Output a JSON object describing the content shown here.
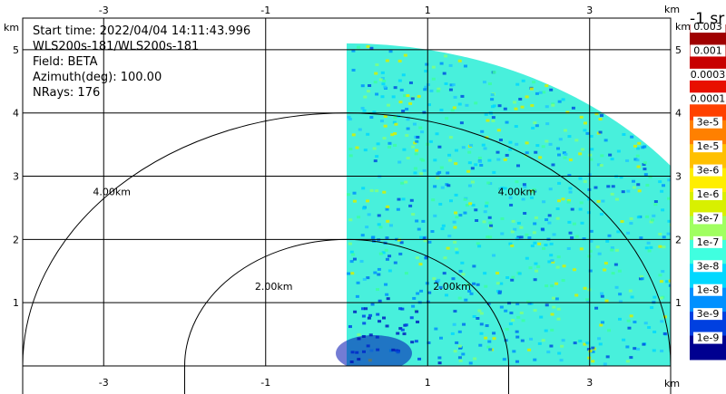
{
  "info": {
    "lines": [
      "Start time: 2022/04/04 14:11:43.996",
      "WLS200s-181/WLS200s-181",
      "Field: BETA",
      "Azimuth(deg): 100.00",
      "NRays: 176"
    ]
  },
  "colorbar": {
    "title": "-1 sr",
    "labels": [
      "0.003",
      "0.001",
      "0.0003",
      "0.0001",
      "3e-5",
      "1e-5",
      "3e-6",
      "1e-6",
      "3e-7",
      "1e-7",
      "3e-8",
      "1e-8",
      "3e-9",
      "1e-9"
    ],
    "colors": [
      "#a00000",
      "#c80000",
      "#e81000",
      "#ff4000",
      "#ff8000",
      "#ffc000",
      "#ffee00",
      "#d8f000",
      "#a0ff60",
      "#40ffe0",
      "#00d8ff",
      "#0090ff",
      "#0040e0",
      "#000090"
    ]
  },
  "chart_data": {
    "type": "heatmap",
    "title": "",
    "xlabel": "km",
    "ylabel": "km",
    "xlim": [
      -4.0,
      4.0
    ],
    "ylim": [
      0.0,
      5.5
    ],
    "x_ticks": [
      "-3",
      "-1",
      "1",
      "3"
    ],
    "x_tick_values": [
      -3,
      -1,
      1,
      3
    ],
    "y_ticks": [
      "1",
      "2",
      "3",
      "4",
      "5"
    ],
    "y_tick_values": [
      1,
      2,
      3,
      4,
      5
    ],
    "grid": true,
    "range_rings": [
      {
        "radius_km": 2.0,
        "label": "2.00km"
      },
      {
        "radius_km": 4.0,
        "label": "4.00km"
      }
    ],
    "sector": {
      "start_azimuth_deg": 0,
      "end_azimuth_deg": 90,
      "max_range_km": 5.1
    },
    "background_beta_sr": "1e-7"
  }
}
